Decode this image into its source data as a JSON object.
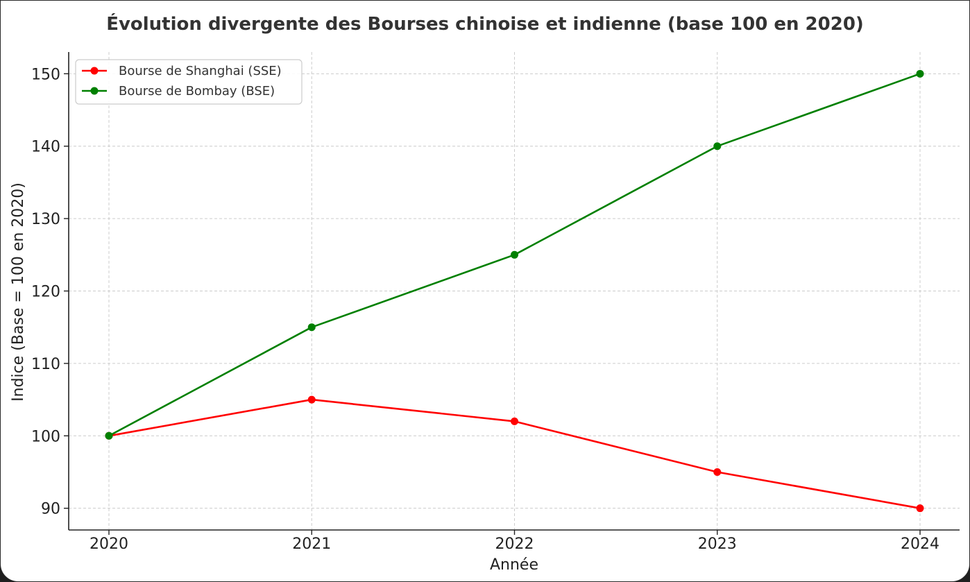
{
  "chart_data": {
    "type": "line",
    "title": "Évolution divergente des Bourses chinoise et indienne (base 100 en 2020)",
    "xlabel": "Année",
    "ylabel": "Indice (Base = 100 en 2020)",
    "x": [
      "2020",
      "2021",
      "2022",
      "2023",
      "2024"
    ],
    "y_ticks": [
      "90",
      "100",
      "110",
      "120",
      "130",
      "140",
      "150"
    ],
    "ylim": [
      87,
      153
    ],
    "grid": true,
    "legend_position": "top-left",
    "series": [
      {
        "name": "Bourse de Shanghai (SSE)",
        "color": "#ff0000",
        "values": [
          100,
          105,
          102,
          95,
          90
        ]
      },
      {
        "name": "Bourse de Bombay (BSE)",
        "color": "#008000",
        "values": [
          100,
          115,
          125,
          140,
          150
        ]
      }
    ]
  }
}
